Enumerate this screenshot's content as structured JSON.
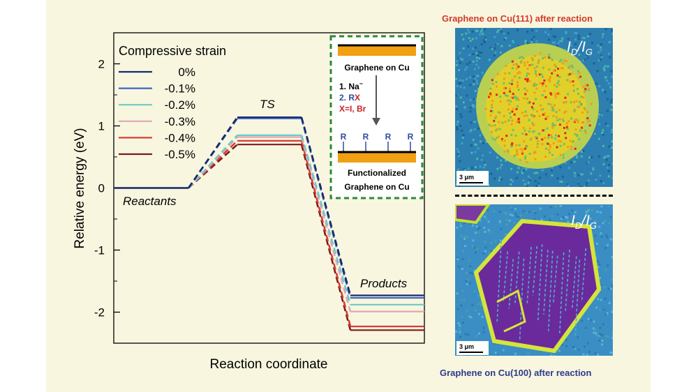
{
  "chart_data": {
    "type": "line",
    "subtype": "energy-profile",
    "xlabel": "Reaction coordinate",
    "ylabel": "Relative energy (eV)",
    "ylim": [
      -2.5,
      2.5
    ],
    "yticks": [
      "2",
      "1",
      "0",
      "-1",
      "-2"
    ],
    "grid": false,
    "legend_title": "Compressive strain",
    "legend_position": "top-left",
    "stages": [
      "Reactants",
      "TS",
      "Products"
    ],
    "stage_labels": {
      "reactants": "Reactants",
      "ts": "TS",
      "products": "Products"
    },
    "series": [
      {
        "name": "0%",
        "color": "#1a2a6c",
        "values": [
          0,
          1.14,
          -1.73
        ]
      },
      {
        "name": "-0.1%",
        "color": "#3a66c4",
        "values": [
          0,
          1.12,
          -1.77
        ]
      },
      {
        "name": "-0.2%",
        "color": "#6ec9c9",
        "values": [
          0,
          0.85,
          -1.88
        ]
      },
      {
        "name": "-0.3%",
        "color": "#e0a6b6",
        "values": [
          0,
          0.82,
          -1.99
        ]
      },
      {
        "name": "-0.4%",
        "color": "#d83c36",
        "values": [
          0,
          0.76,
          -2.23
        ]
      },
      {
        "name": "-0.5%",
        "color": "#7a1a1a",
        "values": [
          0,
          0.7,
          -2.29
        ]
      }
    ]
  },
  "inset": {
    "top_label": "Graphene on Cu",
    "step1": "1. Na",
    "step1_sup": "−",
    "step2_prefix": "2. R",
    "step2_x": "X",
    "step3": "X=I, Br",
    "r_label": "R",
    "bottom_label_line1": "Functionalized",
    "bottom_label_line2": "Graphene on Cu",
    "colors": {
      "substrate": "#f0a010",
      "frame": "#2a8a3a",
      "r": "#2e4aa0",
      "x": "#c8202a"
    }
  },
  "maps": {
    "top_caption": "Graphene on Cu(111) after reaction",
    "bottom_caption": "Graphene on Cu(100) after reaction",
    "ratio_I": "I",
    "ratio_sub_d": "D",
    "ratio_slash": "/I",
    "ratio_sub_g": "G",
    "scale_bar": "3 μm"
  }
}
